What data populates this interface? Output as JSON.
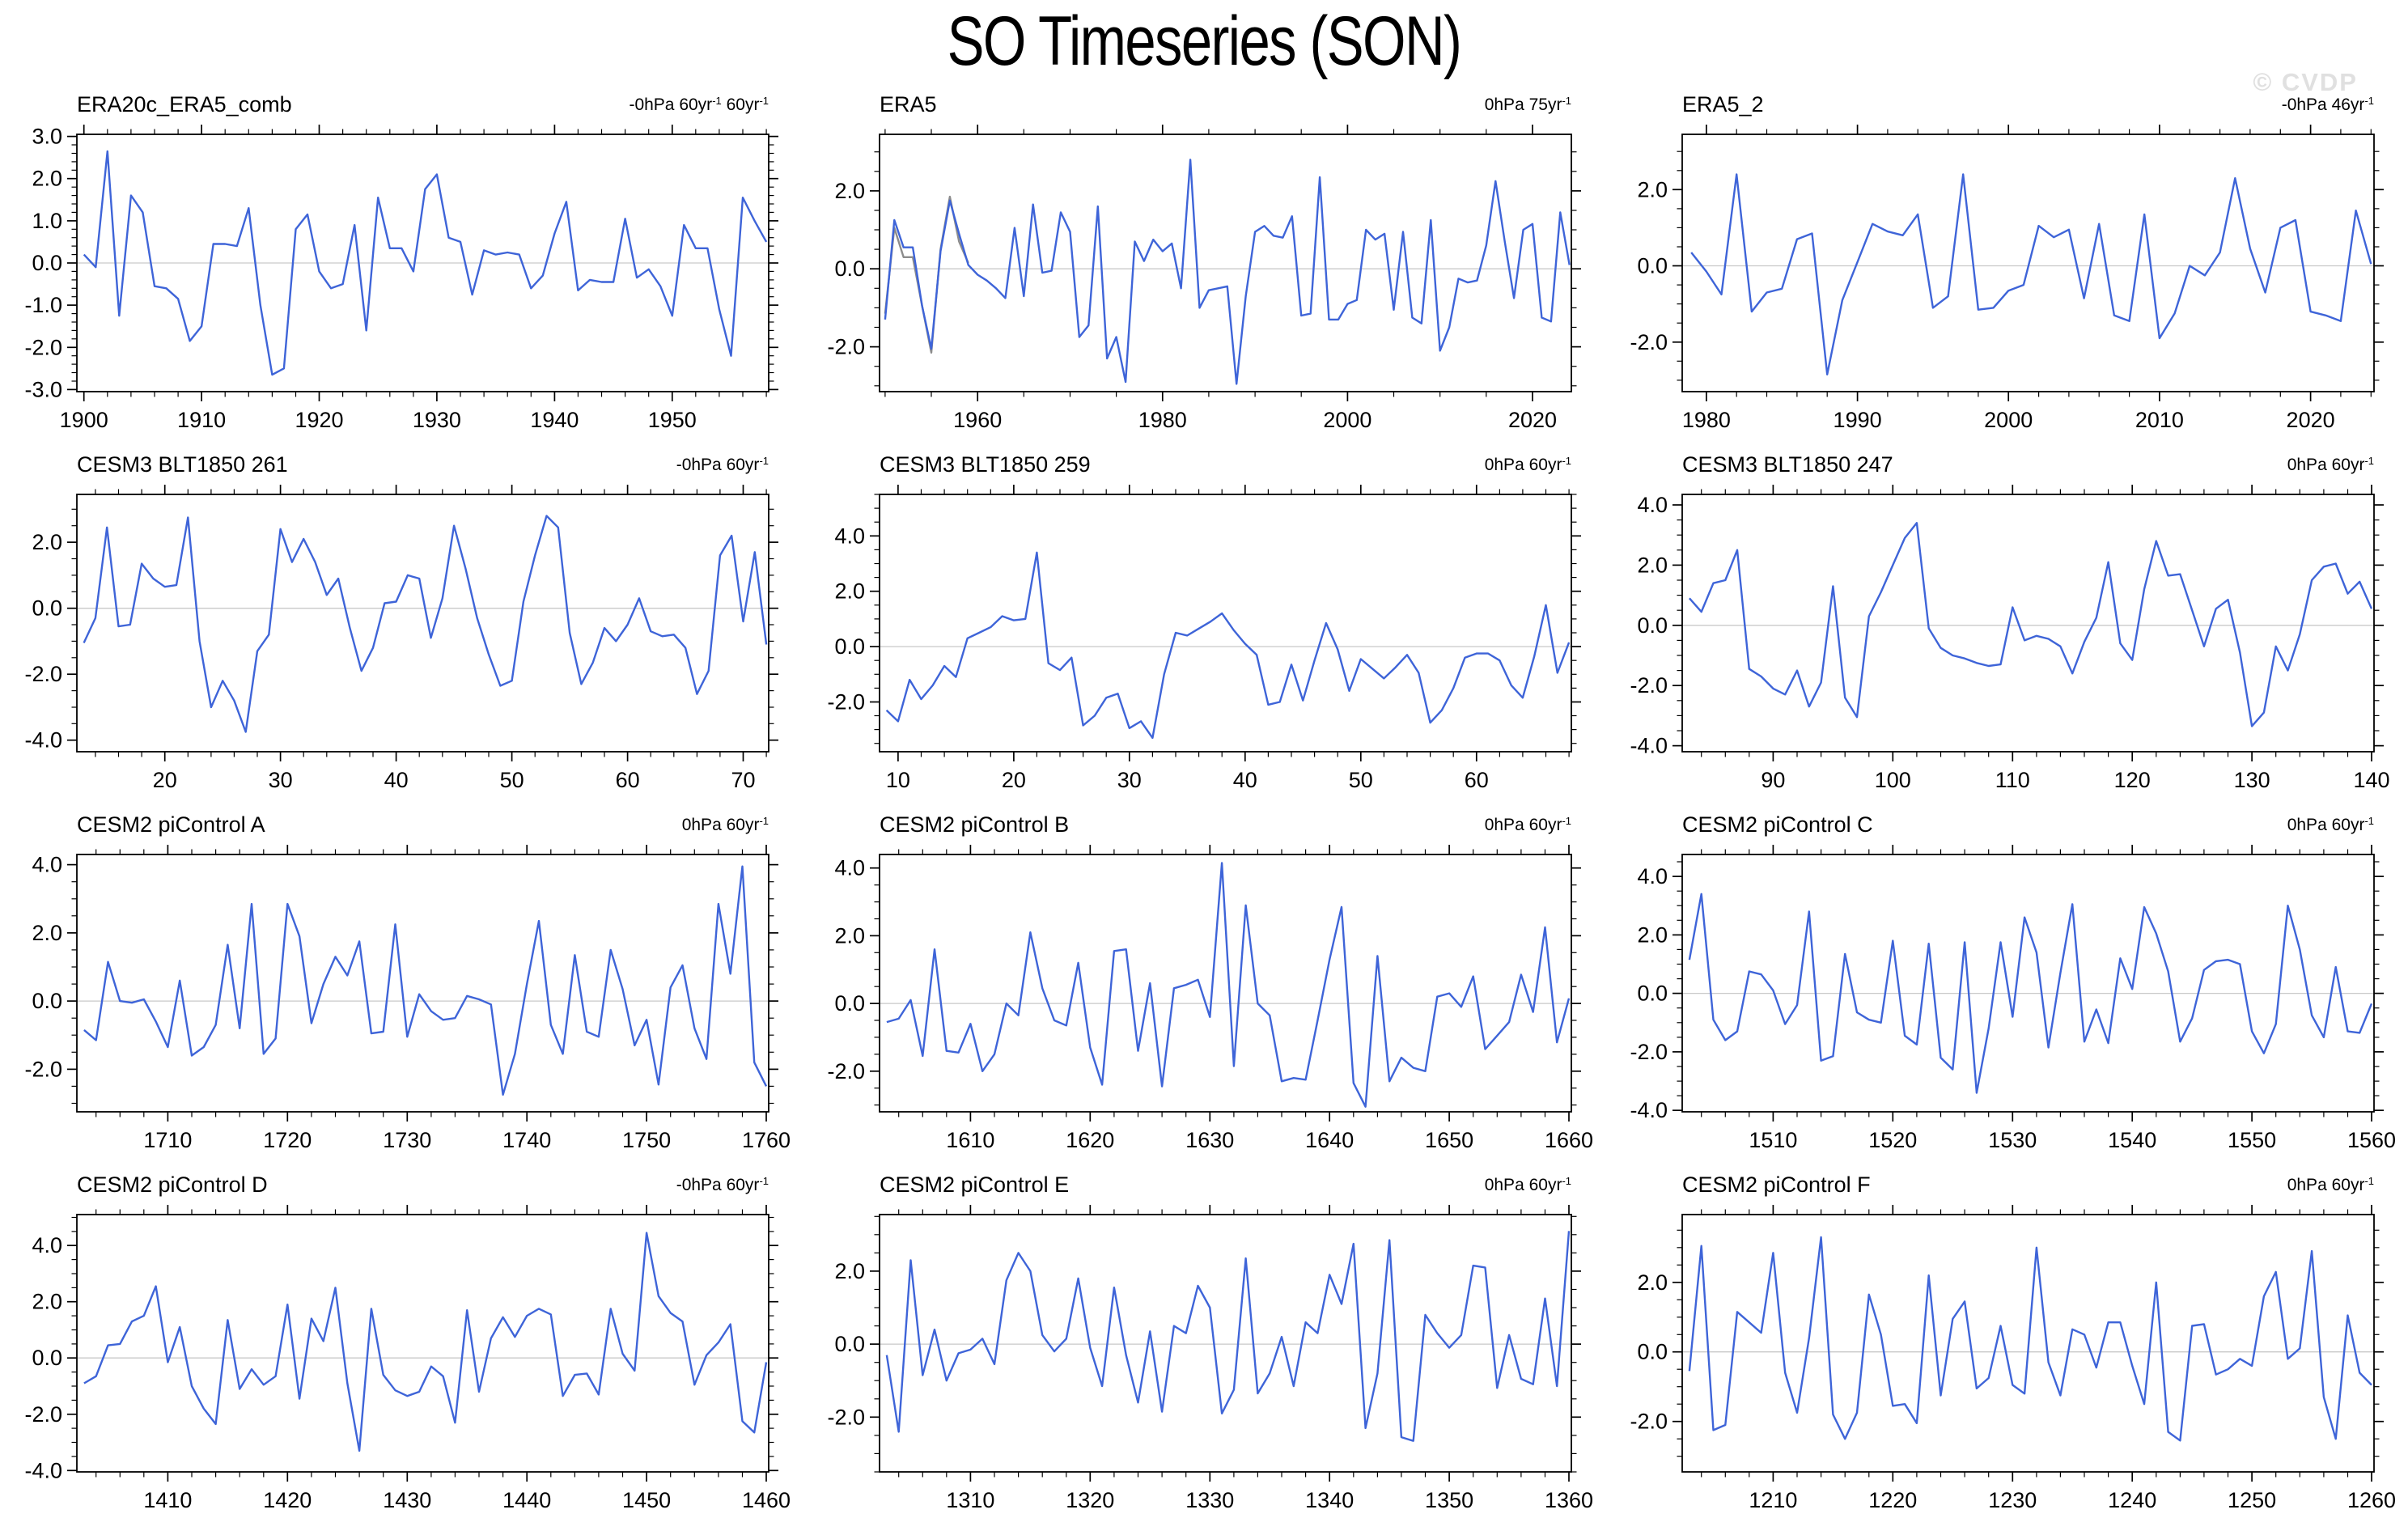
{
  "page": {
    "title": "SO Timeseries (SON)",
    "watermark": "© CVDP"
  },
  "colors": {
    "line": "#3E64D8",
    "line_secondary": "#8C8C8C",
    "zero_line": "#C9C9C9",
    "frame": "#000000",
    "text": "#000000",
    "watermark": "#E0E0E0"
  },
  "chart_data": [
    {
      "type": "line",
      "title": "ERA20c_ERA5_comb",
      "units": "-0hPa 60yr-1 60yr-1",
      "x_start": 1900,
      "xlim": [
        1899.4,
        1958.2
      ],
      "x_major": 10,
      "x_minor": 2,
      "ylim": [
        -3.05,
        3.05
      ],
      "y_labels": [
        3.0,
        2.0,
        1.0,
        0.0,
        -1.0,
        -2.0,
        -3.0
      ],
      "y_minor": 0.2,
      "values": [
        0.2,
        -0.1,
        2.65,
        -1.25,
        1.6,
        1.2,
        -0.55,
        -0.6,
        -0.85,
        -1.85,
        -1.5,
        0.45,
        0.45,
        0.4,
        1.3,
        -1.0,
        -2.65,
        -2.5,
        0.8,
        1.15,
        -0.2,
        -0.6,
        -0.5,
        0.9,
        -1.6,
        1.55,
        0.35,
        0.35,
        -0.2,
        1.75,
        2.1,
        0.6,
        0.5,
        -0.75,
        0.3,
        0.2,
        0.25,
        0.2,
        -0.6,
        -0.3,
        0.7,
        1.45,
        -0.65,
        -0.4,
        -0.45,
        -0.45,
        1.05,
        -0.35,
        -0.15,
        -0.55,
        -1.25,
        0.9,
        0.35,
        0.35,
        -1.1,
        -2.2,
        1.55,
        1.0,
        0.5
      ]
    },
    {
      "type": "line",
      "title": "ERA5",
      "units": "0hPa 75yr-1",
      "x_start": 1950,
      "xlim": [
        1949.4,
        2024.2
      ],
      "x_major": 20,
      "x_minor": 5,
      "ylim": [
        -3.15,
        3.45
      ],
      "y_labels": [
        2.0,
        0.0,
        -2.0
      ],
      "y_minor": 0.5,
      "values": [
        -1.3,
        1.25,
        0.55,
        0.55,
        -0.95,
        -2.05,
        0.45,
        1.75,
        0.9,
        0.1,
        -0.15,
        -0.3,
        -0.5,
        -0.75,
        1.05,
        -0.7,
        1.65,
        -0.1,
        -0.05,
        1.45,
        0.95,
        -1.75,
        -1.45,
        1.6,
        -2.3,
        -1.75,
        -2.9,
        0.7,
        0.2,
        0.75,
        0.45,
        0.65,
        -0.5,
        2.8,
        -1.0,
        -0.55,
        -0.5,
        -0.45,
        -2.95,
        -0.7,
        0.95,
        1.1,
        0.85,
        0.8,
        1.35,
        -1.2,
        -1.15,
        2.35,
        -1.3,
        -1.3,
        -0.9,
        -0.8,
        1.0,
        0.75,
        0.9,
        -1.05,
        0.95,
        -1.25,
        -1.4,
        1.25,
        -2.1,
        -1.5,
        -0.25,
        -0.35,
        -0.3,
        0.6,
        2.25,
        0.7,
        -0.75,
        1.0,
        1.15,
        -1.25,
        -1.35,
        1.45,
        0.1
      ],
      "values_gray": [
        -1.15,
        1.05,
        0.3,
        0.3,
        -0.95,
        -2.15,
        0.5,
        1.85,
        0.7,
        0.15
      ]
    },
    {
      "type": "line",
      "title": "ERA5_2",
      "units": "-0hPa 46yr-1",
      "x_start": 1979,
      "xlim": [
        1978.4,
        2024.2
      ],
      "x_major": 10,
      "x_minor": 2,
      "ylim": [
        -3.3,
        3.45
      ],
      "y_labels": [
        2.0,
        0.0,
        -2.0
      ],
      "y_minor": 0.5,
      "values": [
        0.35,
        -0.15,
        -0.75,
        2.4,
        -1.2,
        -0.7,
        -0.6,
        0.7,
        0.85,
        -2.85,
        -0.9,
        0.1,
        1.1,
        0.9,
        0.8,
        1.35,
        -1.1,
        -0.8,
        2.4,
        -1.15,
        -1.1,
        -0.65,
        -0.5,
        1.05,
        0.75,
        0.95,
        -0.85,
        1.1,
        -1.3,
        -1.45,
        1.35,
        -1.9,
        -1.25,
        0.0,
        -0.25,
        0.35,
        2.3,
        0.45,
        -0.7,
        1.0,
        1.2,
        -1.2,
        -1.3,
        -1.45,
        1.45,
        0.05
      ]
    },
    {
      "type": "line",
      "title": "CESM3 BLT1850 261",
      "units": "-0hPa 60yr-1",
      "x_start": 13,
      "xlim": [
        12.4,
        72.2
      ],
      "x_major": 10,
      "x_minor": 2,
      "ylim": [
        -4.35,
        3.45
      ],
      "y_labels": [
        2.0,
        0.0,
        -2.0,
        -4.0
      ],
      "y_minor": 0.5,
      "values": [
        -1.05,
        -0.3,
        2.45,
        -0.55,
        -0.5,
        1.35,
        0.9,
        0.65,
        0.7,
        2.75,
        -1.0,
        -3.0,
        -2.2,
        -2.8,
        -3.75,
        -1.3,
        -0.8,
        2.4,
        1.4,
        2.1,
        1.4,
        0.4,
        0.9,
        -0.6,
        -1.9,
        -1.2,
        0.15,
        0.2,
        1.0,
        0.9,
        -0.9,
        0.3,
        2.5,
        1.2,
        -0.3,
        -1.4,
        -2.35,
        -2.2,
        0.2,
        1.6,
        2.8,
        2.45,
        -0.75,
        -2.3,
        -1.65,
        -0.6,
        -1.0,
        -0.5,
        0.3,
        -0.7,
        -0.85,
        -0.8,
        -1.2,
        -2.6,
        -1.9,
        1.6,
        2.2,
        -0.4,
        1.7,
        -1.1
      ]
    },
    {
      "type": "line",
      "title": "CESM3 BLT1850 259",
      "units": "0hPa 60yr-1",
      "x_start": 9,
      "xlim": [
        8.4,
        68.2
      ],
      "x_major": 10,
      "x_minor": 2,
      "ylim": [
        -3.8,
        5.5
      ],
      "y_labels": [
        4.0,
        2.0,
        0.0,
        -2.0
      ],
      "y_minor": 0.5,
      "values": [
        -2.3,
        -2.7,
        -1.2,
        -1.9,
        -1.4,
        -0.7,
        -1.1,
        0.3,
        0.5,
        0.7,
        1.1,
        0.95,
        1.0,
        3.4,
        -0.6,
        -0.85,
        -0.4,
        -2.85,
        -2.5,
        -1.85,
        -1.7,
        -2.95,
        -2.7,
        -3.3,
        -1.0,
        0.5,
        0.4,
        0.65,
        0.9,
        1.2,
        0.6,
        0.1,
        -0.3,
        -2.1,
        -2.0,
        -0.65,
        -1.95,
        -0.5,
        0.85,
        -0.1,
        -1.6,
        -0.45,
        -0.8,
        -1.15,
        -0.75,
        -0.3,
        -0.95,
        -2.75,
        -2.3,
        -1.5,
        -0.4,
        -0.25,
        -0.25,
        -0.5,
        -1.4,
        -1.85,
        -0.35,
        1.5,
        -0.95,
        0.15
      ]
    },
    {
      "type": "line",
      "title": "CESM3 BLT1850 247",
      "units": "0hPa 60yr-1",
      "x_start": 83,
      "xlim": [
        82.4,
        140.2
      ],
      "x_major": 10,
      "x_minor": 2,
      "ylim": [
        -4.2,
        4.35
      ],
      "y_labels": [
        4.0,
        2.0,
        0.0,
        -2.0,
        -4.0
      ],
      "y_minor": 0.5,
      "values": [
        0.9,
        0.45,
        1.4,
        1.5,
        2.5,
        -1.45,
        -1.7,
        -2.1,
        -2.3,
        -1.5,
        -2.7,
        -1.9,
        1.3,
        -2.4,
        -3.05,
        0.3,
        1.1,
        2.0,
        2.9,
        3.4,
        -0.1,
        -0.75,
        -1.0,
        -1.1,
        -1.25,
        -1.35,
        -1.3,
        0.6,
        -0.5,
        -0.35,
        -0.45,
        -0.7,
        -1.6,
        -0.55,
        0.25,
        2.1,
        -0.6,
        -1.15,
        1.2,
        2.8,
        1.65,
        1.7,
        0.5,
        -0.7,
        0.55,
        0.85,
        -0.9,
        -3.35,
        -2.9,
        -0.7,
        -1.5,
        -0.3,
        1.5,
        1.95,
        2.05,
        1.05,
        1.45,
        0.55
      ]
    },
    {
      "type": "line",
      "title": "CESM2 piControl A",
      "units": "0hPa 60yr-1",
      "x_start": 1703,
      "xlim": [
        1702.4,
        1760.2
      ],
      "x_major": 10,
      "x_minor": 2,
      "ylim": [
        -3.25,
        4.3
      ],
      "y_labels": [
        4.0,
        2.0,
        0.0,
        -2.0
      ],
      "y_minor": 0.5,
      "values": [
        -0.85,
        -1.15,
        1.15,
        0.0,
        -0.05,
        0.05,
        -0.6,
        -1.35,
        0.6,
        -1.6,
        -1.35,
        -0.7,
        1.65,
        -0.8,
        2.85,
        -1.55,
        -1.1,
        2.85,
        1.9,
        -0.65,
        0.5,
        1.3,
        0.75,
        1.75,
        -0.95,
        -0.9,
        2.25,
        -1.05,
        0.2,
        -0.3,
        -0.55,
        -0.5,
        0.15,
        0.05,
        -0.1,
        -2.75,
        -1.55,
        0.5,
        2.35,
        -0.7,
        -1.55,
        1.35,
        -0.9,
        -1.05,
        1.5,
        0.35,
        -1.3,
        -0.55,
        -2.45,
        0.4,
        1.05,
        -0.8,
        -1.7,
        2.85,
        0.8,
        3.95,
        -1.8,
        -2.5
      ]
    },
    {
      "type": "line",
      "title": "CESM2 piControl B",
      "units": "0hPa 60yr-1",
      "x_start": 1603,
      "xlim": [
        1602.4,
        1660.2
      ],
      "x_major": 10,
      "x_minor": 2,
      "ylim": [
        -3.2,
        4.4
      ],
      "y_labels": [
        4.0,
        2.0,
        0.0,
        -2.0
      ],
      "y_minor": 0.5,
      "values": [
        -0.55,
        -0.45,
        0.1,
        -1.55,
        1.6,
        -1.4,
        -1.45,
        -0.6,
        -2.0,
        -1.5,
        0.0,
        -0.35,
        2.1,
        0.45,
        -0.5,
        -0.65,
        1.2,
        -1.3,
        -2.4,
        1.55,
        1.6,
        -1.4,
        0.6,
        -2.45,
        0.45,
        0.55,
        0.7,
        -0.4,
        4.15,
        -1.85,
        2.9,
        0.0,
        -0.35,
        -2.3,
        -2.2,
        -2.25,
        -0.5,
        1.3,
        2.85,
        -2.35,
        -3.05,
        1.4,
        -2.3,
        -1.6,
        -1.9,
        -2.0,
        0.2,
        0.3,
        -0.1,
        0.8,
        -1.35,
        -0.95,
        -0.55,
        0.85,
        -0.25,
        2.25,
        -1.15,
        0.15
      ]
    },
    {
      "type": "line",
      "title": "CESM2 piControl C",
      "units": "0hPa 60yr-1",
      "x_start": 1503,
      "xlim": [
        1502.4,
        1560.2
      ],
      "x_major": 10,
      "x_minor": 2,
      "ylim": [
        -4.05,
        4.75
      ],
      "y_labels": [
        4.0,
        2.0,
        0.0,
        -2.0,
        -4.0
      ],
      "y_minor": 0.5,
      "values": [
        1.15,
        3.4,
        -0.9,
        -1.6,
        -1.3,
        0.75,
        0.65,
        0.1,
        -1.05,
        -0.4,
        2.8,
        -2.3,
        -2.15,
        1.35,
        -0.65,
        -0.9,
        -1.0,
        1.8,
        -1.45,
        -1.75,
        1.7,
        -2.2,
        -2.6,
        1.75,
        -3.4,
        -1.2,
        1.75,
        -0.8,
        2.6,
        1.4,
        -1.85,
        0.7,
        3.05,
        -1.65,
        -0.55,
        -1.7,
        1.2,
        0.15,
        2.95,
        2.05,
        0.75,
        -1.65,
        -0.85,
        0.8,
        1.1,
        1.15,
        1.0,
        -1.3,
        -2.05,
        -1.05,
        3.0,
        1.5,
        -0.75,
        -1.5,
        0.9,
        -1.3,
        -1.35,
        -0.35
      ]
    },
    {
      "type": "line",
      "title": "CESM2 piControl D",
      "units": "-0hPa 60yr-1",
      "x_start": 1403,
      "xlim": [
        1402.4,
        1460.2
      ],
      "x_major": 10,
      "x_minor": 2,
      "ylim": [
        -4.05,
        5.1
      ],
      "y_labels": [
        4.0,
        2.0,
        0.0,
        -2.0,
        -4.0
      ],
      "y_minor": 0.5,
      "values": [
        -0.9,
        -0.65,
        0.45,
        0.5,
        1.3,
        1.5,
        2.55,
        -0.15,
        1.1,
        -1.0,
        -1.8,
        -2.35,
        1.35,
        -1.1,
        -0.4,
        -0.95,
        -0.65,
        1.9,
        -1.45,
        1.4,
        0.6,
        2.5,
        -0.9,
        -3.3,
        1.75,
        -0.6,
        -1.15,
        -1.35,
        -1.2,
        -0.3,
        -0.65,
        -2.3,
        1.7,
        -1.2,
        0.7,
        1.45,
        0.75,
        1.5,
        1.75,
        1.55,
        -1.35,
        -0.6,
        -0.55,
        -1.3,
        1.75,
        0.15,
        -0.45,
        4.45,
        2.2,
        1.6,
        1.3,
        -0.95,
        0.1,
        0.55,
        1.2,
        -2.25,
        -2.65,
        -0.15
      ]
    },
    {
      "type": "line",
      "title": "CESM2 piControl E",
      "units": "0hPa 60yr-1",
      "x_start": 1303,
      "xlim": [
        1302.4,
        1360.2
      ],
      "x_major": 10,
      "x_minor": 2,
      "ylim": [
        -3.5,
        3.55
      ],
      "y_labels": [
        2.0,
        0.0,
        -2.0
      ],
      "y_minor": 0.5,
      "values": [
        -0.3,
        -2.4,
        2.3,
        -0.85,
        0.4,
        -1.0,
        -0.25,
        -0.15,
        0.15,
        -0.55,
        1.75,
        2.5,
        2.0,
        0.25,
        -0.2,
        0.15,
        1.8,
        -0.1,
        -1.15,
        1.55,
        -0.3,
        -1.6,
        0.35,
        -1.85,
        0.5,
        0.3,
        1.6,
        1.0,
        -1.9,
        -1.25,
        2.35,
        -1.35,
        -0.8,
        0.2,
        -1.15,
        0.6,
        0.3,
        1.9,
        1.1,
        2.75,
        -2.3,
        -0.8,
        2.85,
        -2.55,
        -2.65,
        0.8,
        0.3,
        -0.1,
        0.25,
        2.15,
        2.1,
        -1.2,
        0.25,
        -0.95,
        -1.1,
        1.25,
        -1.15,
        3.1
      ]
    },
    {
      "type": "line",
      "title": "CESM2 piControl F",
      "units": "0hPa 60yr-1",
      "x_start": 1203,
      "xlim": [
        1202.4,
        1260.2
      ],
      "x_major": 10,
      "x_minor": 2,
      "ylim": [
        -3.45,
        3.95
      ],
      "y_labels": [
        2.0,
        0.0,
        -2.0
      ],
      "y_minor": 0.5,
      "values": [
        -0.55,
        3.05,
        -2.25,
        -2.1,
        1.15,
        0.85,
        0.55,
        2.85,
        -0.6,
        -1.75,
        0.4,
        3.3,
        -1.8,
        -2.5,
        -1.75,
        1.65,
        0.5,
        -1.55,
        -1.5,
        -2.05,
        2.2,
        -1.25,
        0.95,
        1.45,
        -1.05,
        -0.75,
        0.75,
        -0.95,
        -1.2,
        3.0,
        -0.3,
        -1.25,
        0.65,
        0.5,
        -0.45,
        0.85,
        0.85,
        -0.4,
        -1.5,
        2.0,
        -2.3,
        -2.55,
        0.75,
        0.8,
        -0.65,
        -0.5,
        -0.2,
        -0.4,
        1.6,
        2.3,
        -0.2,
        0.1,
        2.9,
        -1.3,
        -2.5,
        1.05,
        -0.6,
        -0.95
      ]
    }
  ]
}
